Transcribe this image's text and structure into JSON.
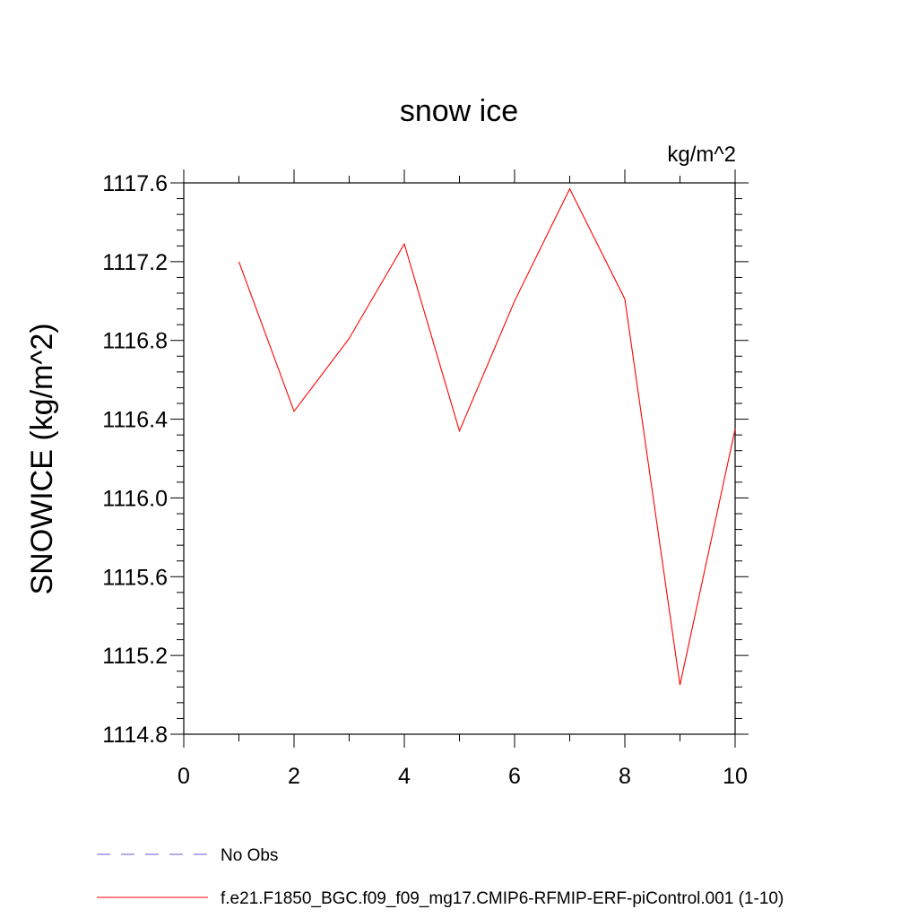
{
  "chart_data": {
    "type": "line",
    "title": "snow ice",
    "units_label": "kg/m^2",
    "xlabel": "",
    "ylabel": "SNOWICE  (kg/m^2)",
    "xlim": [
      0,
      10
    ],
    "ylim": [
      1114.8,
      1117.6
    ],
    "x_ticks": [
      "0",
      "2",
      "4",
      "6",
      "8",
      "10"
    ],
    "y_ticks": [
      "1114.8",
      "1115.2",
      "1115.6",
      "1116.0",
      "1116.4",
      "1116.8",
      "1117.2",
      "1117.6"
    ],
    "grid": false,
    "legend_position": "bottom",
    "legend": [
      {
        "name": "No Obs",
        "style": "dashed",
        "color": "#6a5acd"
      },
      {
        "name": "f.e21.F1850_BGC.f09_f09_mg17.CMIP6-RFMIP-ERF-piControl.001 (1-10)",
        "style": "solid",
        "color": "#ff0000"
      }
    ],
    "series": [
      {
        "name": "f.e21.F1850_BGC.f09_f09_mg17.CMIP6-RFMIP-ERF-piControl.001 (1-10)",
        "color": "#ff0000",
        "x": [
          1,
          2,
          3,
          4,
          5,
          6,
          7,
          8,
          9,
          10
        ],
        "y": [
          1117.2,
          1116.44,
          1116.81,
          1117.29,
          1116.34,
          1117.0,
          1117.57,
          1117.01,
          1115.05,
          1116.35
        ]
      }
    ]
  }
}
